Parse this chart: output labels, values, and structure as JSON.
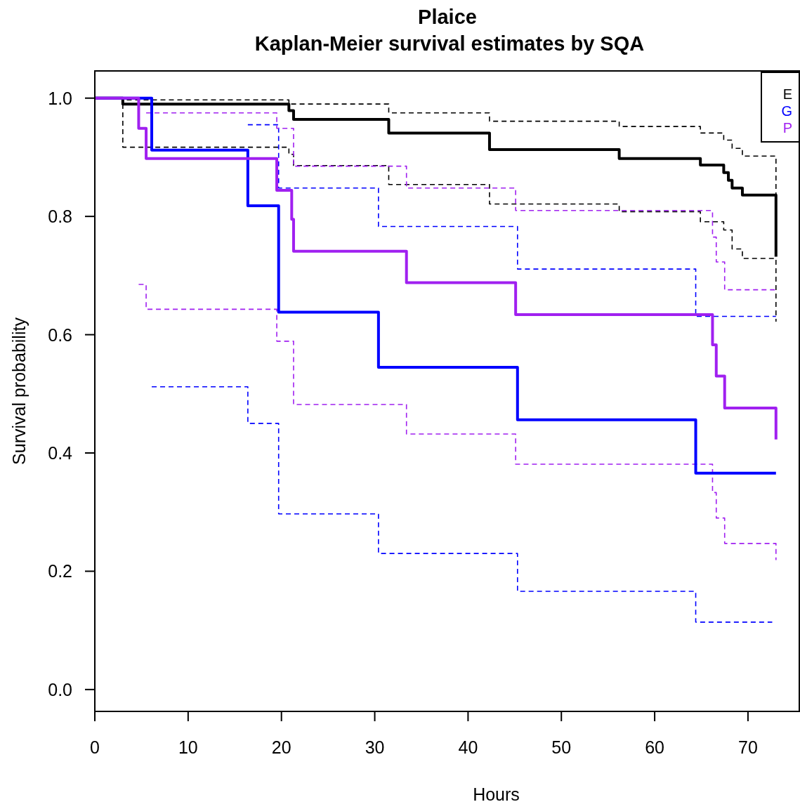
{
  "chart_data": {
    "type": "step",
    "title": "Plaice",
    "subtitle": "Kaplan-Meier survival estimates by SQA",
    "xlabel": "Hours",
    "ylabel": "Survival probability",
    "xlim": [
      0,
      75.5
    ],
    "xticks": [
      0,
      10,
      20,
      30,
      40,
      50,
      60,
      70
    ],
    "ylim": [
      -0.037,
      1.046
    ],
    "yticks": [
      {
        "value": 0,
        "label": "0.0"
      },
      {
        "value": 0.2,
        "label": "0.2"
      },
      {
        "value": 0.4,
        "label": "0.4"
      },
      {
        "value": 0.6,
        "label": "0.6"
      },
      {
        "value": 0.8,
        "label": "0.8"
      },
      {
        "value": 1,
        "label": "1.0"
      }
    ],
    "grid": false,
    "legend": "top right",
    "line_style": "solid",
    "marker": "none",
    "series": [
      {
        "color": "#000000",
        "line_style": "dashed",
        "x": [
          0,
          3.0,
          20.8,
          31.5,
          42.3,
          56.2,
          64.9,
          67.4,
          68.3,
          69.4,
          73.0
        ],
        "values": [
          1.0,
          0.997,
          0.99,
          0.975,
          0.961,
          0.952,
          0.941,
          0.929,
          0.915,
          0.902,
          0.732
        ]
      },
      {
        "color": "#000000",
        "line_style": "dashed",
        "x": [
          0,
          3.0,
          20.8,
          21.3,
          31.5,
          42.3,
          56.2,
          64.9,
          67.4,
          68.3,
          69.4,
          73.0
        ],
        "values": [
          1.0,
          0.917,
          0.905,
          0.886,
          0.854,
          0.821,
          0.808,
          0.791,
          0.777,
          0.745,
          0.729,
          0.622
        ]
      },
      {
        "color": "#0000ff",
        "line_style": "dashed",
        "x": [
          16.4,
          19.7,
          30.4,
          45.3,
          64.4,
          73.0
        ],
        "values": [
          0.955,
          0.848,
          0.783,
          0.711,
          0.631,
          0.631
        ]
      },
      {
        "color": "#0000ff",
        "line_style": "dashed",
        "x": [
          6.1,
          16.4,
          19.7,
          30.4,
          45.3,
          64.4,
          72.6
        ],
        "values": [
          0.512,
          0.45,
          0.297,
          0.23,
          0.166,
          0.114,
          0.114
        ]
      },
      {
        "color": "#a020f0",
        "line_style": "dashed",
        "x": [
          5.5,
          19.5,
          21.3,
          33.4,
          45.1,
          66.2,
          66.6,
          67.5,
          73.0
        ],
        "values": [
          0.975,
          0.949,
          0.885,
          0.848,
          0.81,
          0.765,
          0.723,
          0.676,
          0.676
        ]
      },
      {
        "color": "#a020f0",
        "line_style": "dashed",
        "x": [
          4.7,
          5.5,
          19.5,
          21.3,
          33.4,
          45.1,
          66.2,
          66.6,
          67.5,
          73.0
        ],
        "values": [
          0.685,
          0.643,
          0.589,
          0.482,
          0.432,
          0.381,
          0.333,
          0.29,
          0.247,
          0.219
        ]
      },
      {
        "name": "E",
        "color": "#000000",
        "x": [
          0,
          3.0,
          20.8,
          21.3,
          31.5,
          42.3,
          56.2,
          64.9,
          67.4,
          67.9,
          68.3,
          69.4,
          73.0
        ],
        "values": [
          1.0,
          0.99,
          0.979,
          0.964,
          0.941,
          0.913,
          0.898,
          0.887,
          0.874,
          0.861,
          0.848,
          0.836,
          0.732
        ]
      },
      {
        "name": "G",
        "color": "#0000ff",
        "x": [
          0,
          6.1,
          16.4,
          19.7,
          30.4,
          45.3,
          64.4,
          73.0
        ],
        "values": [
          1.0,
          0.912,
          0.818,
          0.638,
          0.545,
          0.456,
          0.366,
          0.366
        ]
      },
      {
        "name": "P",
        "color": "#a020f0",
        "x": [
          0,
          4.7,
          5.5,
          19.5,
          21.1,
          21.3,
          33.4,
          45.1,
          66.2,
          66.6,
          67.5,
          73.0
        ],
        "values": [
          1.0,
          0.949,
          0.898,
          0.844,
          0.795,
          0.741,
          0.688,
          0.634,
          0.583,
          0.53,
          0.476,
          0.423
        ]
      }
    ]
  }
}
